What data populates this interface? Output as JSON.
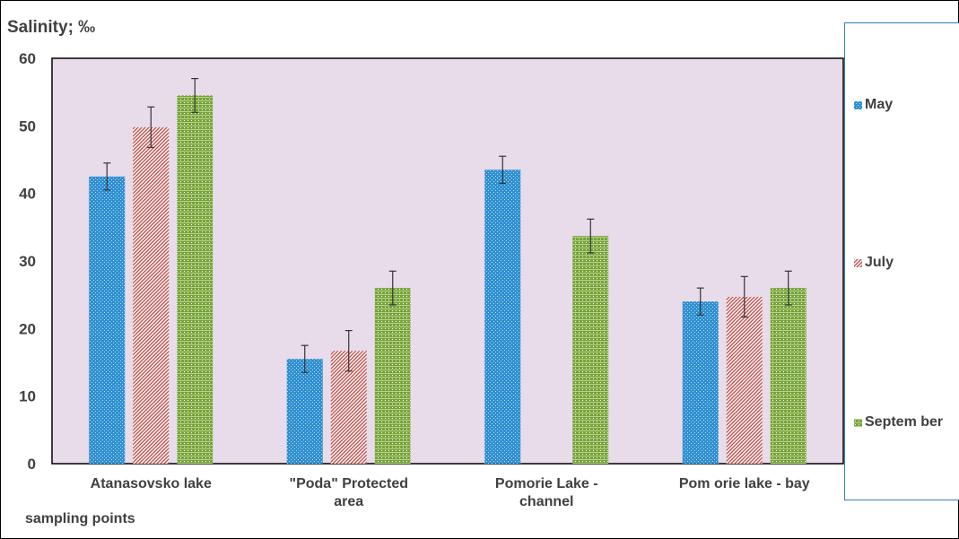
{
  "chart_data": {
    "type": "bar",
    "ylabel": "Salinity; ‰",
    "xlabel": "sampling points",
    "ylim": [
      0,
      60
    ],
    "yticks": [
      0,
      10,
      20,
      30,
      40,
      50,
      60
    ],
    "categories": [
      "Atanasovsko lake",
      "\"Poda\" Protected area",
      "Pomorie Lake - channel",
      "Pom orie lake - bay"
    ],
    "series": [
      {
        "name": "May",
        "color": "#2e8fd1",
        "pattern": "dots",
        "values": [
          42.5,
          15.5,
          43.5,
          24.0
        ],
        "errors": [
          2.0,
          2.0,
          2.0,
          2.0
        ]
      },
      {
        "name": "July",
        "color": "#c0504d",
        "pattern": "diagonal",
        "values": [
          49.8,
          16.7,
          null,
          24.7
        ],
        "errors": [
          3.0,
          3.0,
          null,
          3.0
        ]
      },
      {
        "name": "Septem ber",
        "color": "#77a33a",
        "pattern": "horizontal",
        "values": [
          54.5,
          26.0,
          33.7,
          26.0
        ],
        "errors": [
          2.5,
          2.5,
          2.5,
          2.5
        ]
      }
    ],
    "grid": false,
    "legend_position": "right",
    "plot_background": "#e8dcea"
  }
}
